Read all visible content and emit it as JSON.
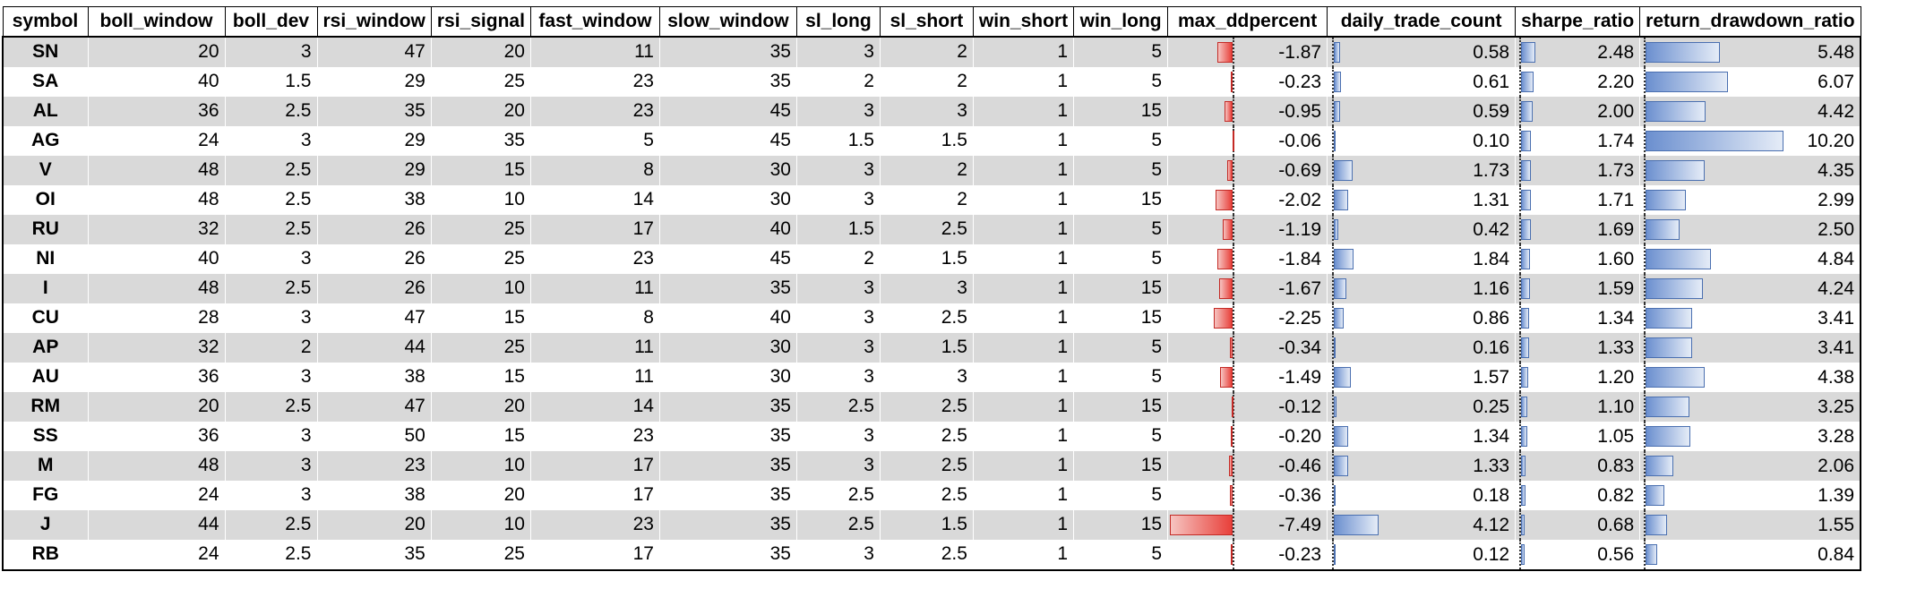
{
  "columns": [
    "symbol",
    "boll_window",
    "boll_dev",
    "rsi_window",
    "rsi_signal",
    "fast_window",
    "slow_window",
    "sl_long",
    "sl_short",
    "win_short",
    "win_long",
    "max_ddpercent",
    "daily_trade_count",
    "sharpe_ratio",
    "return_drawdown_ratio"
  ],
  "rows": [
    {
      "symbol": "SN",
      "boll_window": "20",
      "boll_dev": "3",
      "rsi_window": "47",
      "rsi_signal": "20",
      "fast_window": "11",
      "slow_window": "35",
      "sl_long": "3",
      "sl_short": "2",
      "win_short": "1",
      "win_long": "5",
      "max_ddpercent": "-1.87",
      "daily_trade_count": "0.58",
      "sharpe_ratio": "2.48",
      "return_drawdown_ratio": "5.48"
    },
    {
      "symbol": "SA",
      "boll_window": "40",
      "boll_dev": "1.5",
      "rsi_window": "29",
      "rsi_signal": "25",
      "fast_window": "23",
      "slow_window": "35",
      "sl_long": "2",
      "sl_short": "2",
      "win_short": "1",
      "win_long": "5",
      "max_ddpercent": "-0.23",
      "daily_trade_count": "0.61",
      "sharpe_ratio": "2.20",
      "return_drawdown_ratio": "6.07"
    },
    {
      "symbol": "AL",
      "boll_window": "36",
      "boll_dev": "2.5",
      "rsi_window": "35",
      "rsi_signal": "20",
      "fast_window": "23",
      "slow_window": "45",
      "sl_long": "3",
      "sl_short": "3",
      "win_short": "1",
      "win_long": "15",
      "max_ddpercent": "-0.95",
      "daily_trade_count": "0.59",
      "sharpe_ratio": "2.00",
      "return_drawdown_ratio": "4.42"
    },
    {
      "symbol": "AG",
      "boll_window": "24",
      "boll_dev": "3",
      "rsi_window": "29",
      "rsi_signal": "35",
      "fast_window": "5",
      "slow_window": "45",
      "sl_long": "1.5",
      "sl_short": "1.5",
      "win_short": "1",
      "win_long": "5",
      "max_ddpercent": "-0.06",
      "daily_trade_count": "0.10",
      "sharpe_ratio": "1.74",
      "return_drawdown_ratio": "10.20"
    },
    {
      "symbol": "V",
      "boll_window": "48",
      "boll_dev": "2.5",
      "rsi_window": "29",
      "rsi_signal": "15",
      "fast_window": "8",
      "slow_window": "30",
      "sl_long": "3",
      "sl_short": "2",
      "win_short": "1",
      "win_long": "5",
      "max_ddpercent": "-0.69",
      "daily_trade_count": "1.73",
      "sharpe_ratio": "1.73",
      "return_drawdown_ratio": "4.35"
    },
    {
      "symbol": "OI",
      "boll_window": "48",
      "boll_dev": "2.5",
      "rsi_window": "38",
      "rsi_signal": "10",
      "fast_window": "14",
      "slow_window": "30",
      "sl_long": "3",
      "sl_short": "2",
      "win_short": "1",
      "win_long": "15",
      "max_ddpercent": "-2.02",
      "daily_trade_count": "1.31",
      "sharpe_ratio": "1.71",
      "return_drawdown_ratio": "2.99"
    },
    {
      "symbol": "RU",
      "boll_window": "32",
      "boll_dev": "2.5",
      "rsi_window": "26",
      "rsi_signal": "25",
      "fast_window": "17",
      "slow_window": "40",
      "sl_long": "1.5",
      "sl_short": "2.5",
      "win_short": "1",
      "win_long": "5",
      "max_ddpercent": "-1.19",
      "daily_trade_count": "0.42",
      "sharpe_ratio": "1.69",
      "return_drawdown_ratio": "2.50"
    },
    {
      "symbol": "NI",
      "boll_window": "40",
      "boll_dev": "3",
      "rsi_window": "26",
      "rsi_signal": "25",
      "fast_window": "23",
      "slow_window": "45",
      "sl_long": "2",
      "sl_short": "1.5",
      "win_short": "1",
      "win_long": "5",
      "max_ddpercent": "-1.84",
      "daily_trade_count": "1.84",
      "sharpe_ratio": "1.60",
      "return_drawdown_ratio": "4.84"
    },
    {
      "symbol": "I",
      "boll_window": "48",
      "boll_dev": "2.5",
      "rsi_window": "26",
      "rsi_signal": "10",
      "fast_window": "11",
      "slow_window": "35",
      "sl_long": "3",
      "sl_short": "3",
      "win_short": "1",
      "win_long": "15",
      "max_ddpercent": "-1.67",
      "daily_trade_count": "1.16",
      "sharpe_ratio": "1.59",
      "return_drawdown_ratio": "4.24"
    },
    {
      "symbol": "CU",
      "boll_window": "28",
      "boll_dev": "3",
      "rsi_window": "47",
      "rsi_signal": "15",
      "fast_window": "8",
      "slow_window": "40",
      "sl_long": "3",
      "sl_short": "2.5",
      "win_short": "1",
      "win_long": "15",
      "max_ddpercent": "-2.25",
      "daily_trade_count": "0.86",
      "sharpe_ratio": "1.34",
      "return_drawdown_ratio": "3.41"
    },
    {
      "symbol": "AP",
      "boll_window": "32",
      "boll_dev": "2",
      "rsi_window": "44",
      "rsi_signal": "25",
      "fast_window": "11",
      "slow_window": "30",
      "sl_long": "3",
      "sl_short": "1.5",
      "win_short": "1",
      "win_long": "5",
      "max_ddpercent": "-0.34",
      "daily_trade_count": "0.16",
      "sharpe_ratio": "1.33",
      "return_drawdown_ratio": "3.41"
    },
    {
      "symbol": "AU",
      "boll_window": "36",
      "boll_dev": "3",
      "rsi_window": "38",
      "rsi_signal": "15",
      "fast_window": "11",
      "slow_window": "30",
      "sl_long": "3",
      "sl_short": "3",
      "win_short": "1",
      "win_long": "5",
      "max_ddpercent": "-1.49",
      "daily_trade_count": "1.57",
      "sharpe_ratio": "1.20",
      "return_drawdown_ratio": "4.38"
    },
    {
      "symbol": "RM",
      "boll_window": "20",
      "boll_dev": "2.5",
      "rsi_window": "47",
      "rsi_signal": "20",
      "fast_window": "14",
      "slow_window": "35",
      "sl_long": "2.5",
      "sl_short": "2.5",
      "win_short": "1",
      "win_long": "15",
      "max_ddpercent": "-0.12",
      "daily_trade_count": "0.25",
      "sharpe_ratio": "1.10",
      "return_drawdown_ratio": "3.25"
    },
    {
      "symbol": "SS",
      "boll_window": "36",
      "boll_dev": "3",
      "rsi_window": "50",
      "rsi_signal": "15",
      "fast_window": "23",
      "slow_window": "35",
      "sl_long": "3",
      "sl_short": "2.5",
      "win_short": "1",
      "win_long": "5",
      "max_ddpercent": "-0.20",
      "daily_trade_count": "1.34",
      "sharpe_ratio": "1.05",
      "return_drawdown_ratio": "3.28"
    },
    {
      "symbol": "M",
      "boll_window": "48",
      "boll_dev": "3",
      "rsi_window": "23",
      "rsi_signal": "10",
      "fast_window": "17",
      "slow_window": "35",
      "sl_long": "3",
      "sl_short": "2.5",
      "win_short": "1",
      "win_long": "15",
      "max_ddpercent": "-0.46",
      "daily_trade_count": "1.33",
      "sharpe_ratio": "0.83",
      "return_drawdown_ratio": "2.06"
    },
    {
      "symbol": "FG",
      "boll_window": "24",
      "boll_dev": "3",
      "rsi_window": "38",
      "rsi_signal": "20",
      "fast_window": "17",
      "slow_window": "35",
      "sl_long": "2.5",
      "sl_short": "2.5",
      "win_short": "1",
      "win_long": "5",
      "max_ddpercent": "-0.36",
      "daily_trade_count": "0.18",
      "sharpe_ratio": "0.82",
      "return_drawdown_ratio": "1.39"
    },
    {
      "symbol": "J",
      "boll_window": "44",
      "boll_dev": "2.5",
      "rsi_window": "20",
      "rsi_signal": "10",
      "fast_window": "23",
      "slow_window": "35",
      "sl_long": "2.5",
      "sl_short": "1.5",
      "win_short": "1",
      "win_long": "15",
      "max_ddpercent": "-7.49",
      "daily_trade_count": "4.12",
      "sharpe_ratio": "0.68",
      "return_drawdown_ratio": "1.55"
    },
    {
      "symbol": "RB",
      "boll_window": "24",
      "boll_dev": "2.5",
      "rsi_window": "35",
      "rsi_signal": "25",
      "fast_window": "17",
      "slow_window": "35",
      "sl_long": "3",
      "sl_short": "2.5",
      "win_short": "1",
      "win_long": "5",
      "max_ddpercent": "-0.23",
      "daily_trade_count": "0.12",
      "sharpe_ratio": "0.56",
      "return_drawdown_ratio": "0.84"
    }
  ],
  "bar_columns": {
    "max_ddpercent": {
      "max_abs": 7.49,
      "direction": "negative"
    },
    "daily_trade_count": {
      "max_abs": 4.12,
      "direction": "positive"
    },
    "sharpe_ratio": {
      "max_abs": 2.48,
      "direction": "positive"
    },
    "return_drawdown_ratio": {
      "max_abs": 10.2,
      "direction": "positive"
    }
  },
  "colors": {
    "stripe_row": "#d9d9d9",
    "negative_bar": "#e8403a",
    "positive_bar": "#6b8fcf"
  }
}
